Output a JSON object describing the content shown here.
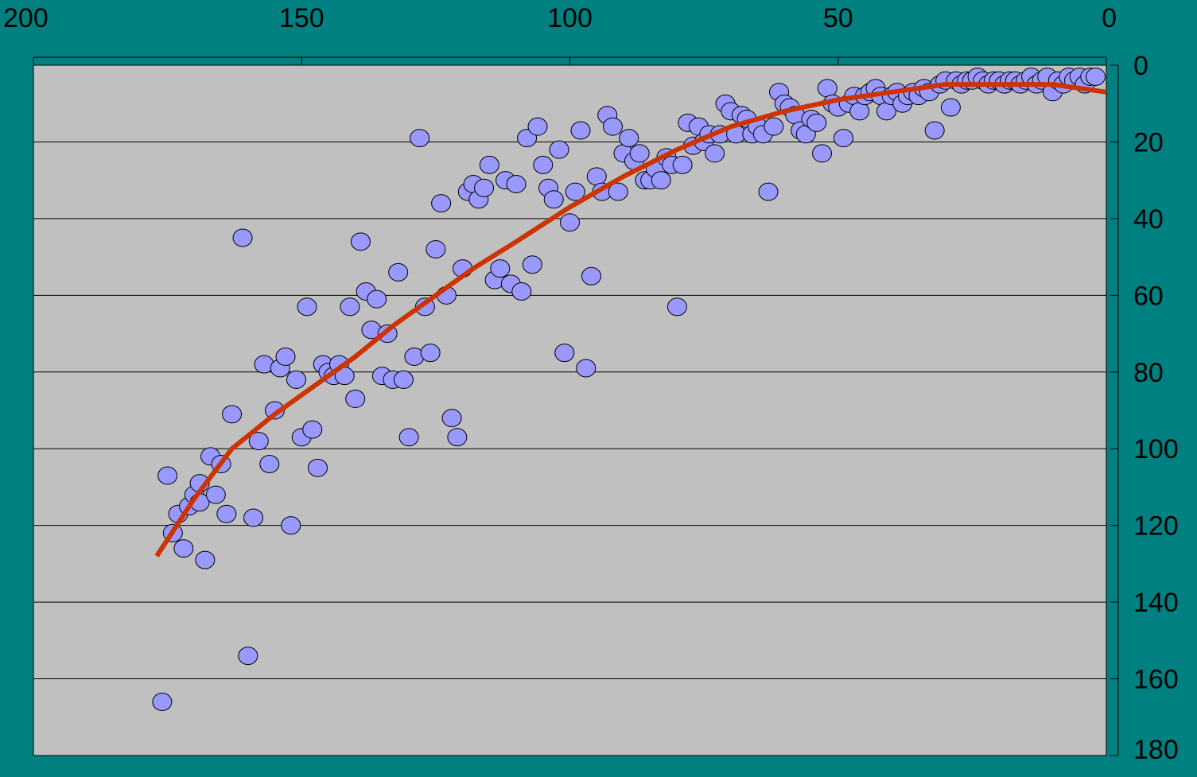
{
  "chart_data": {
    "type": "scatter",
    "title": "",
    "xlabel": "",
    "ylabel": "",
    "xlim": [
      200,
      0
    ],
    "ylim": [
      0,
      180
    ],
    "x_reversed": true,
    "y_reversed": true,
    "x_axis_position": "top",
    "y_axis_position": "right",
    "grid": "horizontal",
    "x_ticks": [
      "200",
      "150",
      "100",
      "50",
      "0"
    ],
    "x_tick_values": [
      200,
      150,
      100,
      50,
      0
    ],
    "y_ticks": [
      "0",
      "20",
      "40",
      "60",
      "80",
      "100",
      "120",
      "140",
      "160",
      "180"
    ],
    "y_tick_values": [
      0,
      20,
      40,
      60,
      80,
      100,
      120,
      140,
      160,
      180
    ],
    "colors": {
      "background": "#008080",
      "plot_area": "#c0c0c0",
      "marker_fill": "#9999ff",
      "marker_edge": "#000000",
      "trendline": "#cc3300"
    },
    "series": [
      {
        "type": "scatter",
        "points": [
          [
            176,
            166
          ],
          [
            175,
            107
          ],
          [
            174,
            122
          ],
          [
            173,
            117
          ],
          [
            172,
            126
          ],
          [
            171,
            115
          ],
          [
            170,
            112
          ],
          [
            169,
            114
          ],
          [
            169,
            109
          ],
          [
            168,
            129
          ],
          [
            167,
            102
          ],
          [
            166,
            112
          ],
          [
            165,
            104
          ],
          [
            164,
            117
          ],
          [
            163,
            91
          ],
          [
            161,
            45
          ],
          [
            160,
            154
          ],
          [
            159,
            118
          ],
          [
            158,
            98
          ],
          [
            157,
            78
          ],
          [
            156,
            104
          ],
          [
            155,
            90
          ],
          [
            154,
            79
          ],
          [
            153,
            76
          ],
          [
            152,
            120
          ],
          [
            151,
            82
          ],
          [
            150,
            97
          ],
          [
            149,
            63
          ],
          [
            148,
            95
          ],
          [
            147,
            105
          ],
          [
            146,
            78
          ],
          [
            145,
            80
          ],
          [
            144,
            81
          ],
          [
            143,
            78
          ],
          [
            142,
            81
          ],
          [
            141,
            63
          ],
          [
            140,
            87
          ],
          [
            139,
            46
          ],
          [
            138,
            59
          ],
          [
            137,
            69
          ],
          [
            136,
            61
          ],
          [
            135,
            81
          ],
          [
            134,
            70
          ],
          [
            133,
            82
          ],
          [
            132,
            54
          ],
          [
            131,
            82
          ],
          [
            130,
            97
          ],
          [
            129,
            76
          ],
          [
            128,
            19
          ],
          [
            127,
            63
          ],
          [
            126,
            75
          ],
          [
            125,
            48
          ],
          [
            124,
            36
          ],
          [
            123,
            60
          ],
          [
            122,
            92
          ],
          [
            121,
            97
          ],
          [
            120,
            53
          ],
          [
            119,
            33
          ],
          [
            118,
            31
          ],
          [
            117,
            35
          ],
          [
            116,
            32
          ],
          [
            115,
            26
          ],
          [
            114,
            56
          ],
          [
            113,
            53
          ],
          [
            112,
            30
          ],
          [
            111,
            57
          ],
          [
            110,
            31
          ],
          [
            109,
            59
          ],
          [
            108,
            19
          ],
          [
            107,
            52
          ],
          [
            106,
            16
          ],
          [
            105,
            26
          ],
          [
            104,
            32
          ],
          [
            103,
            35
          ],
          [
            102,
            22
          ],
          [
            101,
            75
          ],
          [
            100,
            41
          ],
          [
            99,
            33
          ],
          [
            98,
            17
          ],
          [
            97,
            79
          ],
          [
            96,
            55
          ],
          [
            95,
            29
          ],
          [
            94,
            33
          ],
          [
            93,
            13
          ],
          [
            92,
            16
          ],
          [
            91,
            33
          ],
          [
            90,
            23
          ],
          [
            89,
            19
          ],
          [
            88,
            25
          ],
          [
            87,
            23
          ],
          [
            86,
            30
          ],
          [
            85,
            30
          ],
          [
            84,
            27
          ],
          [
            83,
            30
          ],
          [
            82,
            24
          ],
          [
            81,
            26
          ],
          [
            80,
            63
          ],
          [
            79,
            26
          ],
          [
            78,
            15
          ],
          [
            77,
            21
          ],
          [
            76,
            16
          ],
          [
            75,
            20
          ],
          [
            74,
            18
          ],
          [
            73,
            23
          ],
          [
            72,
            18
          ],
          [
            71,
            10
          ],
          [
            70,
            12
          ],
          [
            69,
            18
          ],
          [
            68,
            13
          ],
          [
            67,
            14
          ],
          [
            66,
            18
          ],
          [
            65,
            16
          ],
          [
            64,
            18
          ],
          [
            63,
            33
          ],
          [
            62,
            16
          ],
          [
            61,
            7
          ],
          [
            60,
            10
          ],
          [
            59,
            11
          ],
          [
            58,
            13
          ],
          [
            57,
            17
          ],
          [
            56,
            18
          ],
          [
            55,
            14
          ],
          [
            54,
            15
          ],
          [
            53,
            23
          ],
          [
            52,
            6
          ],
          [
            51,
            10
          ],
          [
            50,
            11
          ],
          [
            49,
            19
          ],
          [
            48,
            10
          ],
          [
            47,
            8
          ],
          [
            46,
            12
          ],
          [
            45,
            8
          ],
          [
            44,
            7
          ],
          [
            43,
            6
          ],
          [
            42,
            8
          ],
          [
            41,
            12
          ],
          [
            40,
            8
          ],
          [
            39,
            7
          ],
          [
            38,
            10
          ],
          [
            37,
            8
          ],
          [
            36,
            7
          ],
          [
            35,
            8
          ],
          [
            34,
            6
          ],
          [
            33,
            7
          ],
          [
            32,
            17
          ],
          [
            31,
            5
          ],
          [
            30,
            4
          ],
          [
            29,
            11
          ],
          [
            28,
            4
          ],
          [
            27,
            5
          ],
          [
            26,
            4
          ],
          [
            25,
            4
          ],
          [
            24,
            3
          ],
          [
            23,
            4
          ],
          [
            22,
            5
          ],
          [
            21,
            4
          ],
          [
            20,
            4
          ],
          [
            19,
            5
          ],
          [
            18,
            4
          ],
          [
            17,
            4
          ],
          [
            16,
            5
          ],
          [
            15,
            4
          ],
          [
            14,
            3
          ],
          [
            13,
            5
          ],
          [
            12,
            4
          ],
          [
            11,
            3
          ],
          [
            10,
            7
          ],
          [
            9,
            4
          ],
          [
            8,
            5
          ],
          [
            7,
            3
          ],
          [
            6,
            4
          ],
          [
            5,
            3
          ],
          [
            4,
            5
          ],
          [
            3,
            3
          ],
          [
            2,
            3
          ]
        ]
      },
      {
        "type": "line",
        "smooth": true,
        "points": [
          [
            177,
            128
          ],
          [
            170,
            113
          ],
          [
            163,
            100
          ],
          [
            155,
            91
          ],
          [
            148,
            84
          ],
          [
            140,
            76
          ],
          [
            133,
            68
          ],
          [
            125,
            60
          ],
          [
            118,
            53
          ],
          [
            110,
            46
          ],
          [
            100,
            37
          ],
          [
            90,
            29
          ],
          [
            80,
            22
          ],
          [
            70,
            16
          ],
          [
            60,
            12
          ],
          [
            50,
            9
          ],
          [
            40,
            7
          ],
          [
            30,
            5
          ],
          [
            20,
            5
          ],
          [
            10,
            5
          ],
          [
            0,
            7
          ]
        ]
      }
    ]
  }
}
